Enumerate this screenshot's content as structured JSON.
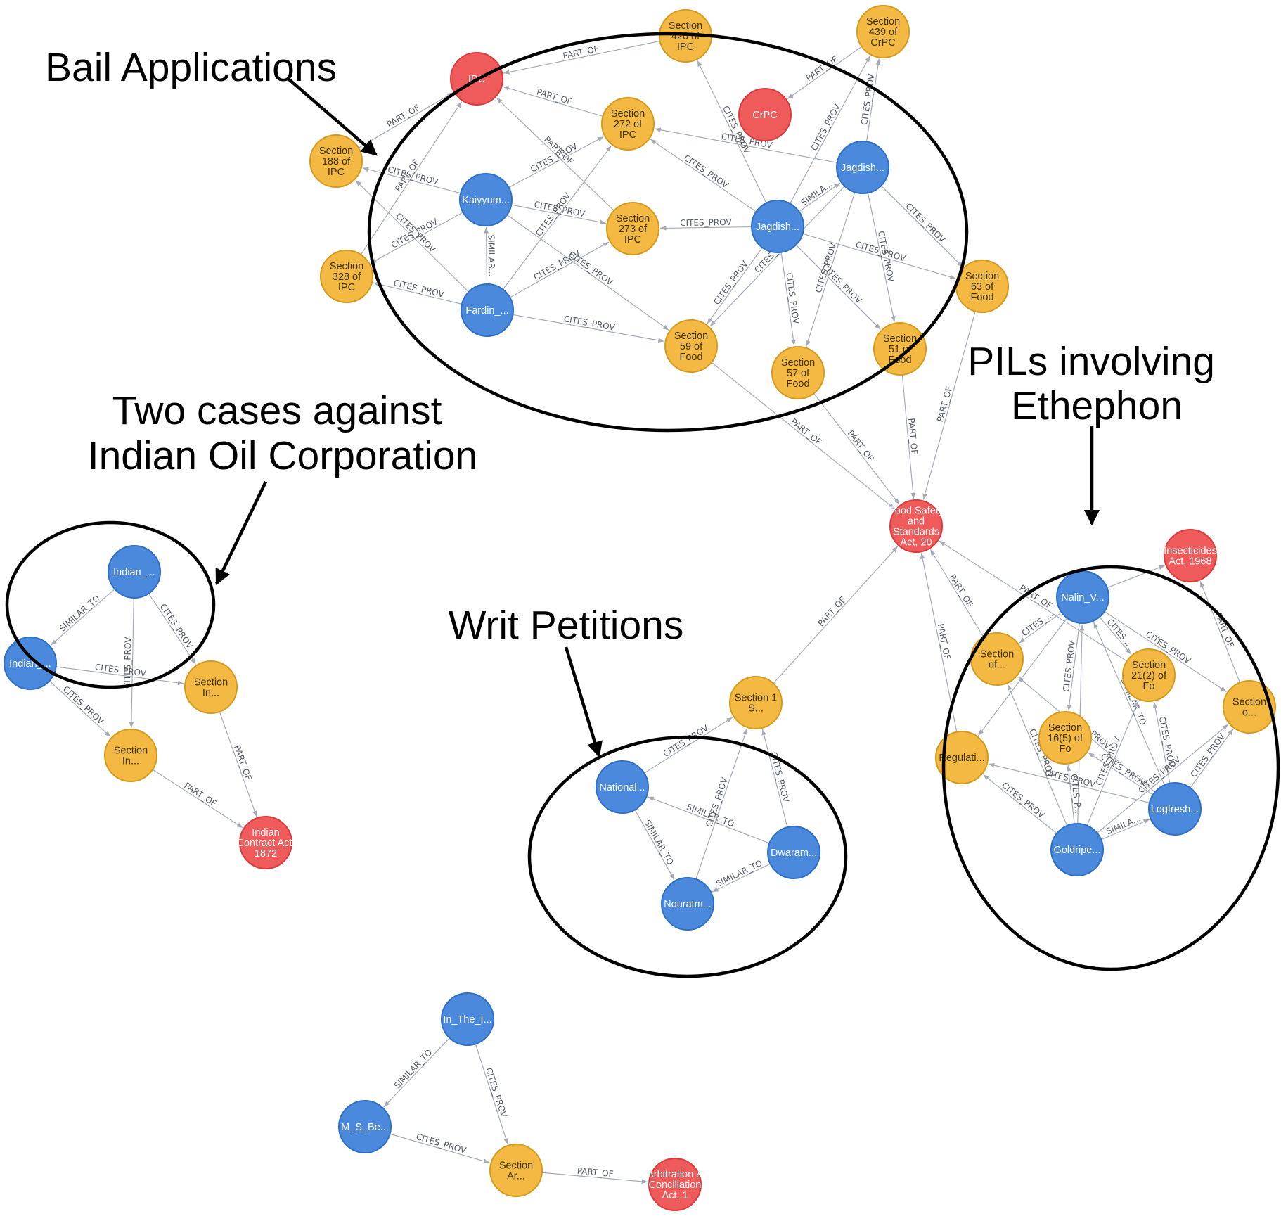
{
  "colors": {
    "case": "#4a89dc",
    "case_stroke": "#2f6fc4",
    "provision": "#f4b942",
    "provision_stroke": "#d49a1e",
    "act": "#ef5b5b",
    "act_stroke": "#d93a3a",
    "edge": "#a5abb6"
  },
  "annotations": [
    {
      "id": "bail",
      "lines": [
        "Bail Applications"
      ]
    },
    {
      "id": "ioc",
      "lines": [
        "Two cases against",
        "Indian Oil Corporation"
      ]
    },
    {
      "id": "writ",
      "lines": [
        "Writ Petitions"
      ]
    },
    {
      "id": "pil",
      "lines": [
        "PILs involving",
        "Ethephon"
      ]
    }
  ],
  "nodes": [
    {
      "id": "ipc",
      "type": "act",
      "lines": [
        "IPC"
      ]
    },
    {
      "id": "crpc",
      "type": "act",
      "lines": [
        "CrPC"
      ]
    },
    {
      "id": "fssa",
      "type": "act",
      "lines": [
        "Food Safety",
        "and",
        "Standards",
        "Act, 20"
      ]
    },
    {
      "id": "insect",
      "type": "act",
      "lines": [
        "Insecticides",
        "Act, 1968"
      ]
    },
    {
      "id": "ica",
      "type": "act",
      "lines": [
        "Indian",
        "Contract Act,",
        "1872"
      ]
    },
    {
      "id": "arb",
      "type": "act",
      "lines": [
        "Arbitration &",
        "Conciliation",
        "Act, 1"
      ]
    },
    {
      "id": "s420",
      "type": "provision",
      "lines": [
        "Section",
        "420 of",
        "IPC"
      ]
    },
    {
      "id": "s439",
      "type": "provision",
      "lines": [
        "Section",
        "439 of",
        "CrPC"
      ]
    },
    {
      "id": "s188",
      "type": "provision",
      "lines": [
        "Section",
        "188 of",
        "IPC"
      ]
    },
    {
      "id": "s328",
      "type": "provision",
      "lines": [
        "Section",
        "328 of",
        "IPC"
      ]
    },
    {
      "id": "s272",
      "type": "provision",
      "lines": [
        "Section",
        "272 of",
        "IPC"
      ]
    },
    {
      "id": "s273",
      "type": "provision",
      "lines": [
        "Section",
        "273 of",
        "IPC"
      ]
    },
    {
      "id": "s59",
      "type": "provision",
      "lines": [
        "Section",
        "59 of",
        "Food"
      ]
    },
    {
      "id": "s57",
      "type": "provision",
      "lines": [
        "Section",
        "57 of",
        "Food"
      ]
    },
    {
      "id": "s51",
      "type": "provision",
      "lines": [
        "Section",
        "51 of",
        "Food"
      ]
    },
    {
      "id": "s63",
      "type": "provision",
      "lines": [
        "Section",
        "63 of",
        "Food"
      ]
    },
    {
      "id": "s1",
      "type": "provision",
      "lines": [
        "Section 1",
        "S..."
      ]
    },
    {
      "id": "secof",
      "type": "provision",
      "lines": [
        "Section",
        "of..."
      ]
    },
    {
      "id": "s21",
      "type": "provision",
      "lines": [
        "Section",
        "21(2) of",
        "Fo"
      ]
    },
    {
      "id": "s16",
      "type": "provision",
      "lines": [
        "Section",
        "16(5) of",
        "Fo"
      ]
    },
    {
      "id": "sec_o",
      "type": "provision",
      "lines": [
        "Section",
        "o..."
      ]
    },
    {
      "id": "regul",
      "type": "provision",
      "lines": [
        "Regulati..."
      ]
    },
    {
      "id": "secIn1",
      "type": "provision",
      "lines": [
        "Section",
        "In..."
      ]
    },
    {
      "id": "secIn2",
      "type": "provision",
      "lines": [
        "Section",
        "In..."
      ]
    },
    {
      "id": "secAr",
      "type": "provision",
      "lines": [
        "Section",
        "Ar..."
      ]
    },
    {
      "id": "kaiy",
      "type": "case",
      "lines": [
        "Kaiyyum..."
      ]
    },
    {
      "id": "fard",
      "type": "case",
      "lines": [
        "Fardin_..."
      ]
    },
    {
      "id": "jag1",
      "type": "case",
      "lines": [
        "Jagdish..."
      ]
    },
    {
      "id": "jag2",
      "type": "case",
      "lines": [
        "Jagdish..."
      ]
    },
    {
      "id": "ind1",
      "type": "case",
      "lines": [
        "Indian_..."
      ]
    },
    {
      "id": "ind2",
      "type": "case",
      "lines": [
        "Indian_..."
      ]
    },
    {
      "id": "natl",
      "type": "case",
      "lines": [
        "National..."
      ]
    },
    {
      "id": "dwar",
      "type": "case",
      "lines": [
        "Dwaram..."
      ]
    },
    {
      "id": "nour",
      "type": "case",
      "lines": [
        "Nouratm..."
      ]
    },
    {
      "id": "nalin",
      "type": "case",
      "lines": [
        "Nalin_V..."
      ]
    },
    {
      "id": "logf",
      "type": "case",
      "lines": [
        "Logfresh..."
      ]
    },
    {
      "id": "gold",
      "type": "case",
      "lines": [
        "Goldripe..."
      ]
    },
    {
      "id": "inthe",
      "type": "case",
      "lines": [
        "In_The_I..."
      ]
    },
    {
      "id": "msbe",
      "type": "case",
      "lines": [
        "M_S_Be..."
      ]
    }
  ],
  "edges": [
    {
      "source": "s420",
      "target": "ipc",
      "label": "PART_OF"
    },
    {
      "source": "s188",
      "target": "ipc",
      "label": "PART_OF"
    },
    {
      "source": "s272",
      "target": "ipc",
      "label": "PART_OF"
    },
    {
      "source": "s273",
      "target": "ipc",
      "label": "PART_OF"
    },
    {
      "source": "s328",
      "target": "ipc",
      "label": "PART_OF"
    },
    {
      "source": "s439",
      "target": "crpc",
      "label": "PART_OF"
    },
    {
      "source": "s59",
      "target": "fssa",
      "label": "PART_OF"
    },
    {
      "source": "s57",
      "target": "fssa",
      "label": "PART_OF"
    },
    {
      "source": "s51",
      "target": "fssa",
      "label": "PART_OF"
    },
    {
      "source": "s63",
      "target": "fssa",
      "label": "PART_OF"
    },
    {
      "source": "s1",
      "target": "fssa",
      "label": "PART_OF"
    },
    {
      "source": "regul",
      "target": "fssa",
      "label": "PART_OF"
    },
    {
      "source": "secof",
      "target": "fssa",
      "label": "PART_OF"
    },
    {
      "source": "s21",
      "target": "fssa",
      "label": "PART_OF"
    },
    {
      "source": "sec_o",
      "target": "insect",
      "label": "PART_OF"
    },
    {
      "source": "secIn1",
      "target": "ica",
      "label": "PART_OF"
    },
    {
      "source": "secIn2",
      "target": "ica",
      "label": "PART_OF"
    },
    {
      "source": "secAr",
      "target": "arb",
      "label": "PART_OF"
    },
    {
      "source": "kaiy",
      "target": "s188",
      "label": "CITES_PROV"
    },
    {
      "source": "kaiy",
      "target": "s272",
      "label": "CITES_PROV"
    },
    {
      "source": "kaiy",
      "target": "s273",
      "label": "CITES_PROV"
    },
    {
      "source": "kaiy",
      "target": "s328",
      "label": "CITES_PROV"
    },
    {
      "source": "kaiy",
      "target": "s59",
      "label": "CITES_PROV"
    },
    {
      "source": "fard",
      "target": "kaiy",
      "label": "SIMILAR..."
    },
    {
      "source": "fard",
      "target": "s188",
      "label": "CITES_PROV"
    },
    {
      "source": "fard",
      "target": "s328",
      "label": "CITES_PROV"
    },
    {
      "source": "fard",
      "target": "s272",
      "label": "CITES_PROV"
    },
    {
      "source": "fard",
      "target": "s273",
      "label": "CITES_PROV"
    },
    {
      "source": "fard",
      "target": "s59",
      "label": "CITES_PROV"
    },
    {
      "source": "jag2",
      "target": "s420",
      "label": "CITES_PROV"
    },
    {
      "source": "jag2",
      "target": "s273",
      "label": "CITES_PROV"
    },
    {
      "source": "jag2",
      "target": "s272",
      "label": "CITES_PROV"
    },
    {
      "source": "jag2",
      "target": "s439",
      "label": "CITES_PROV"
    },
    {
      "source": "jag2",
      "target": "s59",
      "label": "CITES_PROV"
    },
    {
      "source": "jag2",
      "target": "s57",
      "label": "CITES_PROV"
    },
    {
      "source": "jag2",
      "target": "s51",
      "label": "CITES_PROV"
    },
    {
      "source": "jag2",
      "target": "s63",
      "label": "CITES_PROV"
    },
    {
      "source": "jag2",
      "target": "jag1",
      "label": "SIMILA..."
    },
    {
      "source": "jag1",
      "target": "s272",
      "label": "CITES_PROV"
    },
    {
      "source": "jag1",
      "target": "s439",
      "label": "CITES_PROV"
    },
    {
      "source": "jag1",
      "target": "s63",
      "label": "CITES_PROV"
    },
    {
      "source": "jag1",
      "target": "s51",
      "label": "CITES_PROV"
    },
    {
      "source": "jag1",
      "target": "s57",
      "label": "CITES_PROV"
    },
    {
      "source": "jag1",
      "target": "s59",
      "label": "CITES_PROV"
    },
    {
      "source": "ind1",
      "target": "ind2",
      "label": "SIMILAR_TO"
    },
    {
      "source": "ind1",
      "target": "secIn2",
      "label": "CITES_PROV"
    },
    {
      "source": "ind1",
      "target": "secIn1",
      "label": "CITES_PROV"
    },
    {
      "source": "ind2",
      "target": "secIn2",
      "label": "CITES_PROV"
    },
    {
      "source": "ind2",
      "target": "secIn1",
      "label": "CITES_PROV"
    },
    {
      "source": "natl",
      "target": "s1",
      "label": "CITES_PROV"
    },
    {
      "source": "natl",
      "target": "nour",
      "label": "SIMILAR_TO"
    },
    {
      "source": "dwar",
      "target": "natl",
      "label": "SIMILAR_TO"
    },
    {
      "source": "dwar",
      "target": "nour",
      "label": "SIMILAR_TO"
    },
    {
      "source": "dwar",
      "target": "s1",
      "label": "CITES_PROV"
    },
    {
      "source": "nour",
      "target": "s1",
      "label": "CITES_PROV"
    },
    {
      "source": "nalin",
      "target": "insect",
      "label": ""
    },
    {
      "source": "nalin",
      "target": "secof",
      "label": "CITES_..."
    },
    {
      "source": "nalin",
      "target": "s21",
      "label": "CITES..."
    },
    {
      "source": "nalin",
      "target": "s16",
      "label": "CITES_PROV"
    },
    {
      "source": "nalin",
      "target": "sec_o",
      "label": "CITES_PROV"
    },
    {
      "source": "nalin",
      "target": "regul",
      "label": ""
    },
    {
      "source": "logf",
      "target": "nalin",
      "label": "SIMILAR_TO"
    },
    {
      "source": "logf",
      "target": "s21",
      "label": "CITES_PROV"
    },
    {
      "source": "logf",
      "target": "s16",
      "label": "CITES_PROV"
    },
    {
      "source": "logf",
      "target": "sec_o",
      "label": "CITES_PROV"
    },
    {
      "source": "logf",
      "target": "secof",
      "label": "CITES_PROV"
    },
    {
      "source": "logf",
      "target": "regul",
      "label": "CITES_PROV"
    },
    {
      "source": "gold",
      "target": "logf",
      "label": "SIMILA..."
    },
    {
      "source": "gold",
      "target": "nalin",
      "label": "TO"
    },
    {
      "source": "gold",
      "target": "s16",
      "label": "CITES_P..."
    },
    {
      "source": "gold",
      "target": "s21",
      "label": "CITES_PROV"
    },
    {
      "source": "gold",
      "target": "regul",
      "label": "CITES_PROV"
    },
    {
      "source": "gold",
      "target": "secof",
      "label": "CITES_PROV"
    },
    {
      "source": "gold",
      "target": "sec_o",
      "label": "CITES_PROV"
    },
    {
      "source": "inthe",
      "target": "msbe",
      "label": "SIMILAR_TO"
    },
    {
      "source": "inthe",
      "target": "secAr",
      "label": "CITES_PROV"
    },
    {
      "source": "msbe",
      "target": "secAr",
      "label": "CITES_PROV"
    }
  ]
}
